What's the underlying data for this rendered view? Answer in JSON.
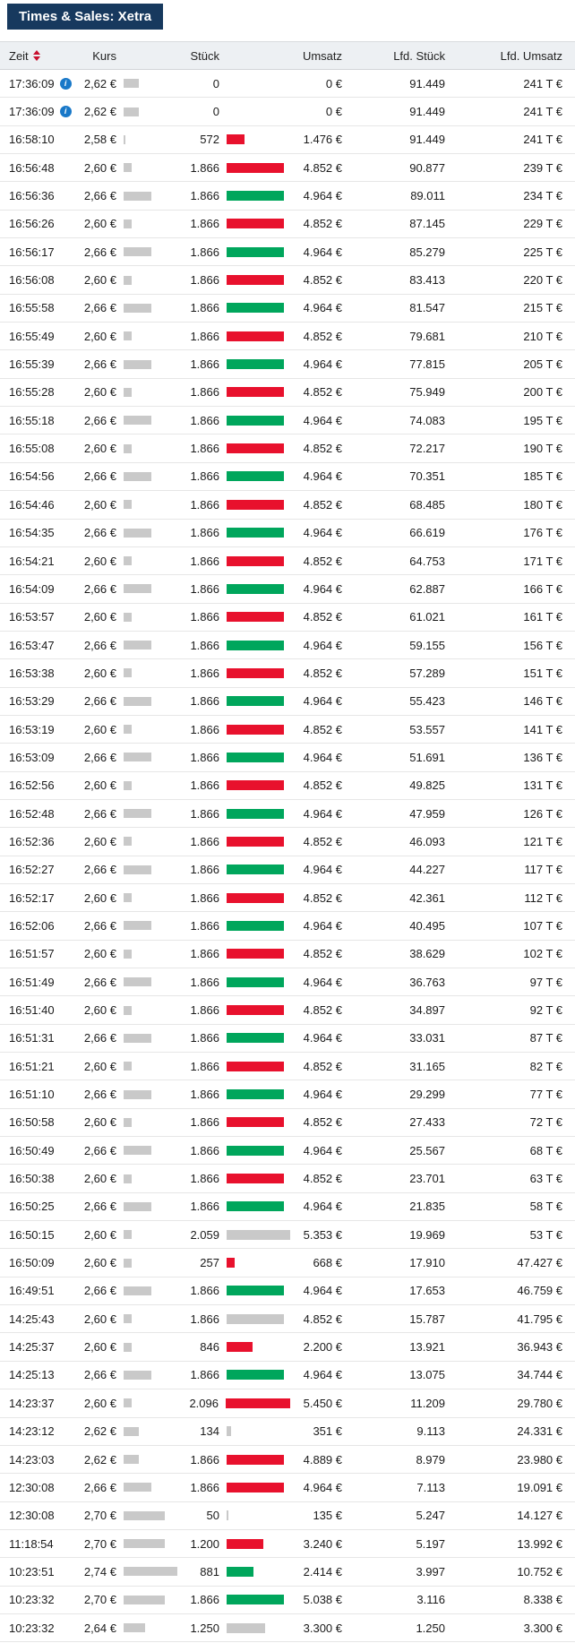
{
  "title": "Times & Sales: Xetra",
  "icons": {
    "info_glyph": "i",
    "sort_icon": "sort-up-down"
  },
  "colors": {
    "title_bg": "#17395e",
    "header_row_bg": "#edf0f3",
    "bar_up": "#00a65c",
    "bar_down": "#e8112d",
    "bar_neutral": "#c9c9c9",
    "info_icon": "#1878c8",
    "sort_icon": "#c8102e"
  },
  "table": {
    "columns": [
      "Zeit",
      "Kurs",
      "Stück",
      "Umsatz",
      "Lfd. Stück",
      "Lfd. Umsatz"
    ],
    "scales": {
      "price_low": 2.58,
      "price_high": 2.74,
      "max_trade_size": 2096
    },
    "rows": [
      {
        "zeit": "17:36:09",
        "info": true,
        "kurs": "2,62 €",
        "kurs_num": 2.62,
        "stueck": "0",
        "stueck_num": 0,
        "dir": "none",
        "umsatz": "0 €",
        "lfd_stueck": "91.449",
        "lfd_umsatz": "241 T €"
      },
      {
        "zeit": "17:36:09",
        "info": true,
        "kurs": "2,62 €",
        "kurs_num": 2.62,
        "stueck": "0",
        "stueck_num": 0,
        "dir": "none",
        "umsatz": "0 €",
        "lfd_stueck": "91.449",
        "lfd_umsatz": "241 T €"
      },
      {
        "zeit": "16:58:10",
        "info": false,
        "kurs": "2,58 €",
        "kurs_num": 2.58,
        "stueck": "572",
        "stueck_num": 572,
        "dir": "down",
        "umsatz": "1.476 €",
        "lfd_stueck": "91.449",
        "lfd_umsatz": "241 T €"
      },
      {
        "zeit": "16:56:48",
        "info": false,
        "kurs": "2,60 €",
        "kurs_num": 2.6,
        "stueck": "1.866",
        "stueck_num": 1866,
        "dir": "down",
        "umsatz": "4.852 €",
        "lfd_stueck": "90.877",
        "lfd_umsatz": "239 T €"
      },
      {
        "zeit": "16:56:36",
        "info": false,
        "kurs": "2,66 €",
        "kurs_num": 2.66,
        "stueck": "1.866",
        "stueck_num": 1866,
        "dir": "up",
        "umsatz": "4.964 €",
        "lfd_stueck": "89.011",
        "lfd_umsatz": "234 T €"
      },
      {
        "zeit": "16:56:26",
        "info": false,
        "kurs": "2,60 €",
        "kurs_num": 2.6,
        "stueck": "1.866",
        "stueck_num": 1866,
        "dir": "down",
        "umsatz": "4.852 €",
        "lfd_stueck": "87.145",
        "lfd_umsatz": "229 T €"
      },
      {
        "zeit": "16:56:17",
        "info": false,
        "kurs": "2,66 €",
        "kurs_num": 2.66,
        "stueck": "1.866",
        "stueck_num": 1866,
        "dir": "up",
        "umsatz": "4.964 €",
        "lfd_stueck": "85.279",
        "lfd_umsatz": "225 T €"
      },
      {
        "zeit": "16:56:08",
        "info": false,
        "kurs": "2,60 €",
        "kurs_num": 2.6,
        "stueck": "1.866",
        "stueck_num": 1866,
        "dir": "down",
        "umsatz": "4.852 €",
        "lfd_stueck": "83.413",
        "lfd_umsatz": "220 T €"
      },
      {
        "zeit": "16:55:58",
        "info": false,
        "kurs": "2,66 €",
        "kurs_num": 2.66,
        "stueck": "1.866",
        "stueck_num": 1866,
        "dir": "up",
        "umsatz": "4.964 €",
        "lfd_stueck": "81.547",
        "lfd_umsatz": "215 T €"
      },
      {
        "zeit": "16:55:49",
        "info": false,
        "kurs": "2,60 €",
        "kurs_num": 2.6,
        "stueck": "1.866",
        "stueck_num": 1866,
        "dir": "down",
        "umsatz": "4.852 €",
        "lfd_stueck": "79.681",
        "lfd_umsatz": "210 T €"
      },
      {
        "zeit": "16:55:39",
        "info": false,
        "kurs": "2,66 €",
        "kurs_num": 2.66,
        "stueck": "1.866",
        "stueck_num": 1866,
        "dir": "up",
        "umsatz": "4.964 €",
        "lfd_stueck": "77.815",
        "lfd_umsatz": "205 T €"
      },
      {
        "zeit": "16:55:28",
        "info": false,
        "kurs": "2,60 €",
        "kurs_num": 2.6,
        "stueck": "1.866",
        "stueck_num": 1866,
        "dir": "down",
        "umsatz": "4.852 €",
        "lfd_stueck": "75.949",
        "lfd_umsatz": "200 T €"
      },
      {
        "zeit": "16:55:18",
        "info": false,
        "kurs": "2,66 €",
        "kurs_num": 2.66,
        "stueck": "1.866",
        "stueck_num": 1866,
        "dir": "up",
        "umsatz": "4.964 €",
        "lfd_stueck": "74.083",
        "lfd_umsatz": "195 T €"
      },
      {
        "zeit": "16:55:08",
        "info": false,
        "kurs": "2,60 €",
        "kurs_num": 2.6,
        "stueck": "1.866",
        "stueck_num": 1866,
        "dir": "down",
        "umsatz": "4.852 €",
        "lfd_stueck": "72.217",
        "lfd_umsatz": "190 T €"
      },
      {
        "zeit": "16:54:56",
        "info": false,
        "kurs": "2,66 €",
        "kurs_num": 2.66,
        "stueck": "1.866",
        "stueck_num": 1866,
        "dir": "up",
        "umsatz": "4.964 €",
        "lfd_stueck": "70.351",
        "lfd_umsatz": "185 T €"
      },
      {
        "zeit": "16:54:46",
        "info": false,
        "kurs": "2,60 €",
        "kurs_num": 2.6,
        "stueck": "1.866",
        "stueck_num": 1866,
        "dir": "down",
        "umsatz": "4.852 €",
        "lfd_stueck": "68.485",
        "lfd_umsatz": "180 T €"
      },
      {
        "zeit": "16:54:35",
        "info": false,
        "kurs": "2,66 €",
        "kurs_num": 2.66,
        "stueck": "1.866",
        "stueck_num": 1866,
        "dir": "up",
        "umsatz": "4.964 €",
        "lfd_stueck": "66.619",
        "lfd_umsatz": "176 T €"
      },
      {
        "zeit": "16:54:21",
        "info": false,
        "kurs": "2,60 €",
        "kurs_num": 2.6,
        "stueck": "1.866",
        "stueck_num": 1866,
        "dir": "down",
        "umsatz": "4.852 €",
        "lfd_stueck": "64.753",
        "lfd_umsatz": "171 T €"
      },
      {
        "zeit": "16:54:09",
        "info": false,
        "kurs": "2,66 €",
        "kurs_num": 2.66,
        "stueck": "1.866",
        "stueck_num": 1866,
        "dir": "up",
        "umsatz": "4.964 €",
        "lfd_stueck": "62.887",
        "lfd_umsatz": "166 T €"
      },
      {
        "zeit": "16:53:57",
        "info": false,
        "kurs": "2,60 €",
        "kurs_num": 2.6,
        "stueck": "1.866",
        "stueck_num": 1866,
        "dir": "down",
        "umsatz": "4.852 €",
        "lfd_stueck": "61.021",
        "lfd_umsatz": "161 T €"
      },
      {
        "zeit": "16:53:47",
        "info": false,
        "kurs": "2,66 €",
        "kurs_num": 2.66,
        "stueck": "1.866",
        "stueck_num": 1866,
        "dir": "up",
        "umsatz": "4.964 €",
        "lfd_stueck": "59.155",
        "lfd_umsatz": "156 T €"
      },
      {
        "zeit": "16:53:38",
        "info": false,
        "kurs": "2,60 €",
        "kurs_num": 2.6,
        "stueck": "1.866",
        "stueck_num": 1866,
        "dir": "down",
        "umsatz": "4.852 €",
        "lfd_stueck": "57.289",
        "lfd_umsatz": "151 T €"
      },
      {
        "zeit": "16:53:29",
        "info": false,
        "kurs": "2,66 €",
        "kurs_num": 2.66,
        "stueck": "1.866",
        "stueck_num": 1866,
        "dir": "up",
        "umsatz": "4.964 €",
        "lfd_stueck": "55.423",
        "lfd_umsatz": "146 T €"
      },
      {
        "zeit": "16:53:19",
        "info": false,
        "kurs": "2,60 €",
        "kurs_num": 2.6,
        "stueck": "1.866",
        "stueck_num": 1866,
        "dir": "down",
        "umsatz": "4.852 €",
        "lfd_stueck": "53.557",
        "lfd_umsatz": "141 T €"
      },
      {
        "zeit": "16:53:09",
        "info": false,
        "kurs": "2,66 €",
        "kurs_num": 2.66,
        "stueck": "1.866",
        "stueck_num": 1866,
        "dir": "up",
        "umsatz": "4.964 €",
        "lfd_stueck": "51.691",
        "lfd_umsatz": "136 T €"
      },
      {
        "zeit": "16:52:56",
        "info": false,
        "kurs": "2,60 €",
        "kurs_num": 2.6,
        "stueck": "1.866",
        "stueck_num": 1866,
        "dir": "down",
        "umsatz": "4.852 €",
        "lfd_stueck": "49.825",
        "lfd_umsatz": "131 T €"
      },
      {
        "zeit": "16:52:48",
        "info": false,
        "kurs": "2,66 €",
        "kurs_num": 2.66,
        "stueck": "1.866",
        "stueck_num": 1866,
        "dir": "up",
        "umsatz": "4.964 €",
        "lfd_stueck": "47.959",
        "lfd_umsatz": "126 T €"
      },
      {
        "zeit": "16:52:36",
        "info": false,
        "kurs": "2,60 €",
        "kurs_num": 2.6,
        "stueck": "1.866",
        "stueck_num": 1866,
        "dir": "down",
        "umsatz": "4.852 €",
        "lfd_stueck": "46.093",
        "lfd_umsatz": "121 T €"
      },
      {
        "zeit": "16:52:27",
        "info": false,
        "kurs": "2,66 €",
        "kurs_num": 2.66,
        "stueck": "1.866",
        "stueck_num": 1866,
        "dir": "up",
        "umsatz": "4.964 €",
        "lfd_stueck": "44.227",
        "lfd_umsatz": "117 T €"
      },
      {
        "zeit": "16:52:17",
        "info": false,
        "kurs": "2,60 €",
        "kurs_num": 2.6,
        "stueck": "1.866",
        "stueck_num": 1866,
        "dir": "down",
        "umsatz": "4.852 €",
        "lfd_stueck": "42.361",
        "lfd_umsatz": "112 T €"
      },
      {
        "zeit": "16:52:06",
        "info": false,
        "kurs": "2,66 €",
        "kurs_num": 2.66,
        "stueck": "1.866",
        "stueck_num": 1866,
        "dir": "up",
        "umsatz": "4.964 €",
        "lfd_stueck": "40.495",
        "lfd_umsatz": "107 T €"
      },
      {
        "zeit": "16:51:57",
        "info": false,
        "kurs": "2,60 €",
        "kurs_num": 2.6,
        "stueck": "1.866",
        "stueck_num": 1866,
        "dir": "down",
        "umsatz": "4.852 €",
        "lfd_stueck": "38.629",
        "lfd_umsatz": "102 T €"
      },
      {
        "zeit": "16:51:49",
        "info": false,
        "kurs": "2,66 €",
        "kurs_num": 2.66,
        "stueck": "1.866",
        "stueck_num": 1866,
        "dir": "up",
        "umsatz": "4.964 €",
        "lfd_stueck": "36.763",
        "lfd_umsatz": "97 T €"
      },
      {
        "zeit": "16:51:40",
        "info": false,
        "kurs": "2,60 €",
        "kurs_num": 2.6,
        "stueck": "1.866",
        "stueck_num": 1866,
        "dir": "down",
        "umsatz": "4.852 €",
        "lfd_stueck": "34.897",
        "lfd_umsatz": "92 T €"
      },
      {
        "zeit": "16:51:31",
        "info": false,
        "kurs": "2,66 €",
        "kurs_num": 2.66,
        "stueck": "1.866",
        "stueck_num": 1866,
        "dir": "up",
        "umsatz": "4.964 €",
        "lfd_stueck": "33.031",
        "lfd_umsatz": "87 T €"
      },
      {
        "zeit": "16:51:21",
        "info": false,
        "kurs": "2,60 €",
        "kurs_num": 2.6,
        "stueck": "1.866",
        "stueck_num": 1866,
        "dir": "down",
        "umsatz": "4.852 €",
        "lfd_stueck": "31.165",
        "lfd_umsatz": "82 T €"
      },
      {
        "zeit": "16:51:10",
        "info": false,
        "kurs": "2,66 €",
        "kurs_num": 2.66,
        "stueck": "1.866",
        "stueck_num": 1866,
        "dir": "up",
        "umsatz": "4.964 €",
        "lfd_stueck": "29.299",
        "lfd_umsatz": "77 T €"
      },
      {
        "zeit": "16:50:58",
        "info": false,
        "kurs": "2,60 €",
        "kurs_num": 2.6,
        "stueck": "1.866",
        "stueck_num": 1866,
        "dir": "down",
        "umsatz": "4.852 €",
        "lfd_stueck": "27.433",
        "lfd_umsatz": "72 T €"
      },
      {
        "zeit": "16:50:49",
        "info": false,
        "kurs": "2,66 €",
        "kurs_num": 2.66,
        "stueck": "1.866",
        "stueck_num": 1866,
        "dir": "up",
        "umsatz": "4.964 €",
        "lfd_stueck": "25.567",
        "lfd_umsatz": "68 T €"
      },
      {
        "zeit": "16:50:38",
        "info": false,
        "kurs": "2,60 €",
        "kurs_num": 2.6,
        "stueck": "1.866",
        "stueck_num": 1866,
        "dir": "down",
        "umsatz": "4.852 €",
        "lfd_stueck": "23.701",
        "lfd_umsatz": "63 T €"
      },
      {
        "zeit": "16:50:25",
        "info": false,
        "kurs": "2,66 €",
        "kurs_num": 2.66,
        "stueck": "1.866",
        "stueck_num": 1866,
        "dir": "up",
        "umsatz": "4.964 €",
        "lfd_stueck": "21.835",
        "lfd_umsatz": "58 T €"
      },
      {
        "zeit": "16:50:15",
        "info": false,
        "kurs": "2,60 €",
        "kurs_num": 2.6,
        "stueck": "2.059",
        "stueck_num": 2059,
        "dir": "neutral",
        "umsatz": "5.353 €",
        "lfd_stueck": "19.969",
        "lfd_umsatz": "53 T €"
      },
      {
        "zeit": "16:50:09",
        "info": false,
        "kurs": "2,60 €",
        "kurs_num": 2.6,
        "stueck": "257",
        "stueck_num": 257,
        "dir": "down",
        "umsatz": "668 €",
        "lfd_stueck": "17.910",
        "lfd_umsatz": "47.427 €"
      },
      {
        "zeit": "16:49:51",
        "info": false,
        "kurs": "2,66 €",
        "kurs_num": 2.66,
        "stueck": "1.866",
        "stueck_num": 1866,
        "dir": "up",
        "umsatz": "4.964 €",
        "lfd_stueck": "17.653",
        "lfd_umsatz": "46.759 €"
      },
      {
        "zeit": "14:25:43",
        "info": false,
        "kurs": "2,60 €",
        "kurs_num": 2.6,
        "stueck": "1.866",
        "stueck_num": 1866,
        "dir": "neutral",
        "umsatz": "4.852 €",
        "lfd_stueck": "15.787",
        "lfd_umsatz": "41.795 €"
      },
      {
        "zeit": "14:25:37",
        "info": false,
        "kurs": "2,60 €",
        "kurs_num": 2.6,
        "stueck": "846",
        "stueck_num": 846,
        "dir": "down",
        "umsatz": "2.200 €",
        "lfd_stueck": "13.921",
        "lfd_umsatz": "36.943 €"
      },
      {
        "zeit": "14:25:13",
        "info": false,
        "kurs": "2,66 €",
        "kurs_num": 2.66,
        "stueck": "1.866",
        "stueck_num": 1866,
        "dir": "up",
        "umsatz": "4.964 €",
        "lfd_stueck": "13.075",
        "lfd_umsatz": "34.744 €"
      },
      {
        "zeit": "14:23:37",
        "info": false,
        "kurs": "2,60 €",
        "kurs_num": 2.6,
        "stueck": "2.096",
        "stueck_num": 2096,
        "dir": "down",
        "umsatz": "5.450 €",
        "lfd_stueck": "11.209",
        "lfd_umsatz": "29.780 €"
      },
      {
        "zeit": "14:23:12",
        "info": false,
        "kurs": "2,62 €",
        "kurs_num": 2.62,
        "stueck": "134",
        "stueck_num": 134,
        "dir": "neutral",
        "umsatz": "351 €",
        "lfd_stueck": "9.113",
        "lfd_umsatz": "24.331 €"
      },
      {
        "zeit": "14:23:03",
        "info": false,
        "kurs": "2,62 €",
        "kurs_num": 2.62,
        "stueck": "1.866",
        "stueck_num": 1866,
        "dir": "down",
        "umsatz": "4.889 €",
        "lfd_stueck": "8.979",
        "lfd_umsatz": "23.980 €"
      },
      {
        "zeit": "12:30:08",
        "info": false,
        "kurs": "2,66 €",
        "kurs_num": 2.66,
        "stueck": "1.866",
        "stueck_num": 1866,
        "dir": "down",
        "umsatz": "4.964 €",
        "lfd_stueck": "7.113",
        "lfd_umsatz": "19.091 €"
      },
      {
        "zeit": "12:30:08",
        "info": false,
        "kurs": "2,70 €",
        "kurs_num": 2.7,
        "stueck": "50",
        "stueck_num": 50,
        "dir": "neutral",
        "umsatz": "135 €",
        "lfd_stueck": "5.247",
        "lfd_umsatz": "14.127 €"
      },
      {
        "zeit": "11:18:54",
        "info": false,
        "kurs": "2,70 €",
        "kurs_num": 2.7,
        "stueck": "1.200",
        "stueck_num": 1200,
        "dir": "down",
        "umsatz": "3.240 €",
        "lfd_stueck": "5.197",
        "lfd_umsatz": "13.992 €"
      },
      {
        "zeit": "10:23:51",
        "info": false,
        "kurs": "2,74 €",
        "kurs_num": 2.74,
        "stueck": "881",
        "stueck_num": 881,
        "dir": "up",
        "umsatz": "2.414 €",
        "lfd_stueck": "3.997",
        "lfd_umsatz": "10.752 €"
      },
      {
        "zeit": "10:23:32",
        "info": false,
        "kurs": "2,70 €",
        "kurs_num": 2.7,
        "stueck": "1.866",
        "stueck_num": 1866,
        "dir": "up",
        "umsatz": "5.038 €",
        "lfd_stueck": "3.116",
        "lfd_umsatz": "8.338 €"
      },
      {
        "zeit": "10:23:32",
        "info": false,
        "kurs": "2,64 €",
        "kurs_num": 2.64,
        "stueck": "1.250",
        "stueck_num": 1250,
        "dir": "neutral",
        "umsatz": "3.300 €",
        "lfd_stueck": "1.250",
        "lfd_umsatz": "3.300 €"
      }
    ]
  }
}
